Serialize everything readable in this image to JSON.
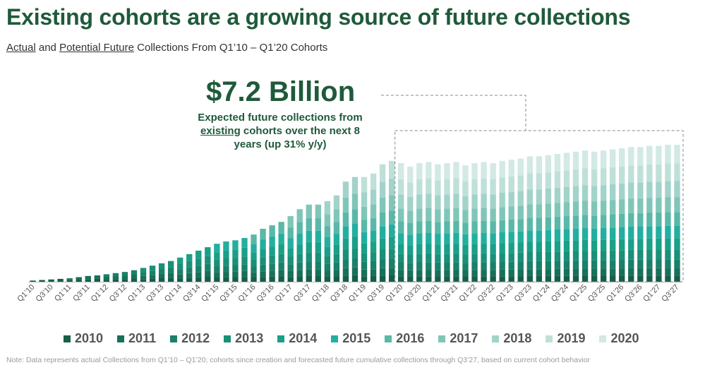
{
  "header": {
    "title": "Existing cohorts are a growing source of future collections",
    "subtitle_part1": "Actual",
    "subtitle_and": " and ",
    "subtitle_part2": "Potential Future",
    "subtitle_rest": " Collections From Q1’10 – Q1’20 Cohorts"
  },
  "callout": {
    "value": "$7.2 Billion",
    "text_before": "Expected future collections from ",
    "text_underlined": "existing",
    "text_after": " cohorts over the next 8 years (up 31% y/y)"
  },
  "note": "Note: Data represents actual Collections from Q1’10 – Q1’20; cohorts since creation and forecasted future cumulative collections through Q3’27, based on current cohort behavior",
  "chart_data": {
    "type": "bar",
    "stacked": true,
    "title": "",
    "xlabel": "",
    "ylabel": "",
    "categories": [
      "Q1'10",
      "Q2'10",
      "Q3'10",
      "Q4'10",
      "Q1'11",
      "Q2'11",
      "Q3'11",
      "Q4'11",
      "Q1'12",
      "Q2'12",
      "Q3'12",
      "Q4'12",
      "Q1'13",
      "Q2'13",
      "Q3'13",
      "Q4'13",
      "Q1'14",
      "Q2'14",
      "Q3'14",
      "Q4'14",
      "Q1'15",
      "Q2'15",
      "Q3'15",
      "Q4'15",
      "Q1'16",
      "Q2'16",
      "Q3'16",
      "Q4'16",
      "Q1'17",
      "Q2'17",
      "Q3'17",
      "Q4'17",
      "Q1'18",
      "Q2'18",
      "Q3'18",
      "Q4'18",
      "Q1'19",
      "Q2'19",
      "Q3'19",
      "Q4'19",
      "Q1'20",
      "Q2'20",
      "Q3'20",
      "Q4'20",
      "Q1'21",
      "Q2'21",
      "Q3'21",
      "Q4'21",
      "Q1'22",
      "Q2'22",
      "Q3'22",
      "Q4'22",
      "Q1'23",
      "Q2'23",
      "Q3'23",
      "Q4'23",
      "Q1'24",
      "Q2'24",
      "Q3'24",
      "Q4'24",
      "Q1'25",
      "Q2'25",
      "Q3'25",
      "Q4'25",
      "Q1'26",
      "Q2'26",
      "Q3'26",
      "Q4'26",
      "Q1'27",
      "Q2'27",
      "Q3'27"
    ],
    "tick_labels": [
      "Q1'10",
      "Q3'10",
      "Q1'11",
      "Q3'11",
      "Q1'12",
      "Q3'12",
      "Q1'13",
      "Q3'13",
      "Q1'14",
      "Q3'14",
      "Q1'15",
      "Q3'15",
      "Q1'16",
      "Q3'16",
      "Q1'17",
      "Q3'17",
      "Q1'18",
      "Q3'18",
      "Q1'19",
      "Q3'19",
      "Q1'20",
      "Q3'20",
      "Q1'21",
      "Q3'21",
      "Q1'22",
      "Q3'22",
      "Q1'23",
      "Q3'23",
      "Q1'24",
      "Q3'24",
      "Q1'25",
      "Q3'25",
      "Q1'26",
      "Q3'26",
      "Q1'27",
      "Q3'27"
    ],
    "totals": [
      1,
      1.5,
      2,
      2.5,
      3,
      4,
      5,
      5.5,
      6.5,
      7.5,
      8.5,
      10,
      12,
      14,
      16,
      18,
      21,
      24,
      27,
      30,
      33,
      35,
      36,
      38,
      41,
      46,
      49,
      52,
      57,
      63,
      67,
      67,
      70,
      75,
      87,
      91,
      91,
      94,
      102,
      105,
      103,
      100,
      103,
      104,
      102,
      103,
      104,
      101,
      103,
      104,
      103,
      105,
      106,
      107,
      109,
      109,
      110,
      111,
      112,
      113,
      114,
      113,
      114,
      115,
      116,
      117,
      117,
      118,
      118,
      119,
      119
    ],
    "series": [
      {
        "name": "2010",
        "color": "#155e4a"
      },
      {
        "name": "2011",
        "color": "#18705a"
      },
      {
        "name": "2012",
        "color": "#1a806a"
      },
      {
        "name": "2013",
        "color": "#1a9078"
      },
      {
        "name": "2014",
        "color": "#1a9f88"
      },
      {
        "name": "2015",
        "color": "#23afa0"
      },
      {
        "name": "2016",
        "color": "#5ab8a8"
      },
      {
        "name": "2017",
        "color": "#80c6b8"
      },
      {
        "name": "2018",
        "color": "#a2d3ca"
      },
      {
        "name": "2019",
        "color": "#bfe0d9"
      },
      {
        "name": "2020",
        "color": "#d2e9e5"
      }
    ],
    "ylim": [
      0,
      130
    ],
    "forecast_start": "Q1'20",
    "grid": false,
    "legend_position": "bottom"
  }
}
